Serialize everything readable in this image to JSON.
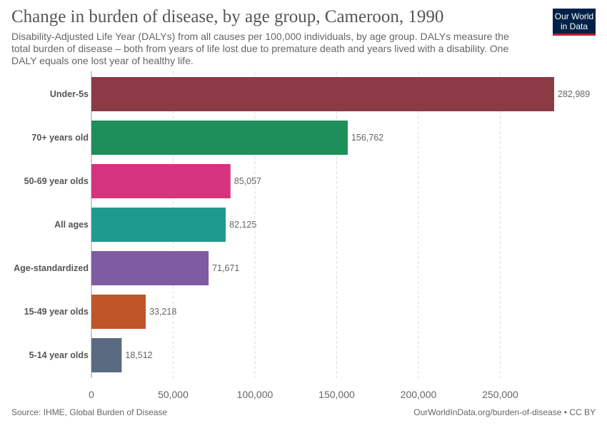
{
  "header": {
    "title": "Change in burden of disease, by age group, Cameroon, 1990",
    "subtitle": "Disability-Adjusted Life Year (DALYs) from all causes per 100,000 individuals, by age group. DALYs measure the total burden of disease – both from years of life lost due to premature death and years lived with a disability. One DALY equals one lost year of healthy life."
  },
  "logo": {
    "line1": "Our World",
    "line2": "in Data"
  },
  "footer": {
    "source": "Source: IHME, Global Burden of Disease",
    "url": "OurWorldInData.org/burden-of-disease • CC BY"
  },
  "chart_data": {
    "type": "bar",
    "orientation": "horizontal",
    "categories": [
      "Under-5s",
      "70+ years old",
      "50-69 year olds",
      "All ages",
      "Age-standardized",
      "15-49 year olds",
      "5-14 year olds"
    ],
    "values": [
      282989,
      156762,
      85057,
      82125,
      71671,
      33218,
      18512
    ],
    "value_labels": [
      "282,989",
      "156,762",
      "85,057",
      "82,125",
      "71,671",
      "33,218",
      "18,512"
    ],
    "colors": [
      "#8c3a46",
      "#1e8e5a",
      "#d6337f",
      "#1f9a8f",
      "#7e5ba2",
      "#bf5528",
      "#5a6a80"
    ],
    "xlim": [
      0,
      282989
    ],
    "x_ticks": [
      0,
      50000,
      100000,
      150000,
      200000,
      250000
    ],
    "x_tick_labels": [
      "0",
      "50,000",
      "100,000",
      "150,000",
      "200,000",
      "250,000"
    ],
    "grid": "vertical dashed"
  }
}
